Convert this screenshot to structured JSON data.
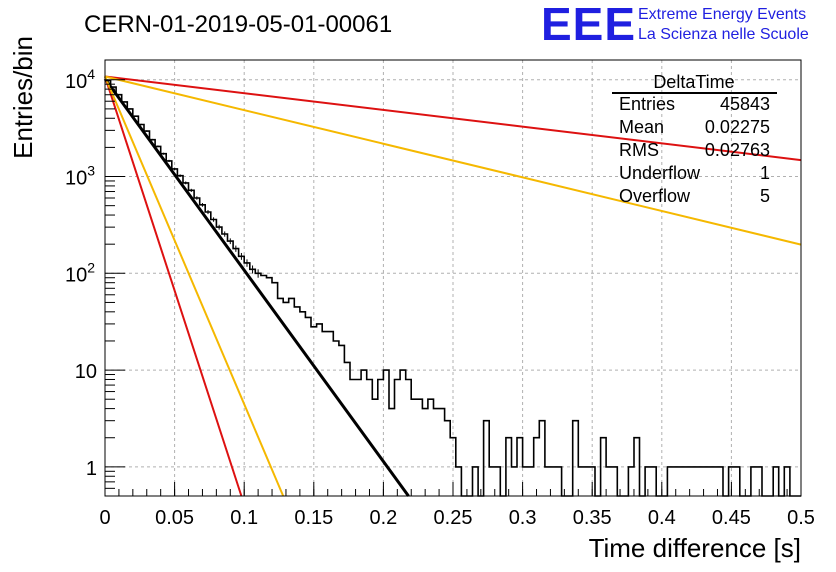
{
  "header": {
    "title": "CERN-01-2019-05-01-00061",
    "logo_text": "EEE",
    "logo_line1": "Extreme Energy Events",
    "logo_line2": "La Scienza nelle Scuole",
    "logo_color": "#1f1fe0"
  },
  "stats": {
    "title": "DeltaTime",
    "rows": [
      {
        "label": "Entries",
        "value": "45843"
      },
      {
        "label": "Mean",
        "value": "0.02275"
      },
      {
        "label": "RMS",
        "value": "0.02763"
      },
      {
        "label": "Underflow",
        "value": "1"
      },
      {
        "label": "Overflow",
        "value": "5"
      }
    ]
  },
  "chart_data": {
    "type": "line",
    "title": "CERN-01-2019-05-01-00061",
    "xlabel": "Time difference [s]",
    "ylabel": "Entries/bin",
    "xlim": [
      0,
      0.5
    ],
    "ylim": [
      0.5,
      16000
    ],
    "yscale": "log",
    "grid": true,
    "x_ticks": [
      {
        "v": 0,
        "label": "0"
      },
      {
        "v": 0.05,
        "label": "0.05"
      },
      {
        "v": 0.1,
        "label": "0.1"
      },
      {
        "v": 0.15,
        "label": "0.15"
      },
      {
        "v": 0.2,
        "label": "0.2"
      },
      {
        "v": 0.25,
        "label": "0.25"
      },
      {
        "v": 0.3,
        "label": "0.3"
      },
      {
        "v": 0.35,
        "label": "0.35"
      },
      {
        "v": 0.4,
        "label": "0.4"
      },
      {
        "v": 0.45,
        "label": "0.45"
      },
      {
        "v": 0.5,
        "label": "0.5"
      }
    ],
    "y_ticks": [
      {
        "v": 1,
        "label": "1"
      },
      {
        "v": 10,
        "label": "10"
      },
      {
        "v": 100,
        "label": "10",
        "exp": "2"
      },
      {
        "v": 1000,
        "label": "10",
        "exp": "3"
      },
      {
        "v": 10000,
        "label": "10",
        "exp": "4"
      }
    ],
    "histogram": {
      "bin_width": 0.004,
      "color": "#000000",
      "values": [
        9800,
        8400,
        7000,
        5900,
        5000,
        4200,
        3450,
        2950,
        2400,
        2050,
        1720,
        1450,
        1200,
        1020,
        860,
        720,
        600,
        510,
        430,
        360,
        300,
        255,
        215,
        180,
        150,
        128,
        110,
        100,
        95,
        90,
        80,
        55,
        50,
        55,
        45,
        40,
        35,
        28,
        30,
        25,
        25,
        20,
        18,
        12,
        8,
        8,
        10,
        8,
        5,
        8,
        10,
        4,
        8,
        10,
        8,
        5,
        5,
        4,
        5,
        4,
        4,
        3,
        2,
        1,
        0.4,
        0.4,
        1,
        0.4,
        3,
        1,
        1,
        0.4,
        2,
        1,
        2,
        1,
        1,
        2,
        3,
        1,
        1,
        1,
        0.4,
        0.4,
        3,
        1,
        1,
        1,
        0.4,
        2,
        1,
        1,
        0.4,
        0.4,
        1,
        2,
        0.4,
        1,
        1,
        0.4,
        0.4,
        1,
        1,
        1,
        1,
        1,
        1,
        1,
        1,
        1,
        1,
        0.4,
        1,
        1,
        0.4,
        0.4,
        1,
        1,
        0.4,
        0.4,
        1,
        0.4,
        1,
        0.4,
        0.4,
        0.4
      ]
    },
    "series": [
      {
        "color": "#000000",
        "points": [
          [
            0,
            10200
          ],
          [
            0.218,
            0.45
          ]
        ]
      },
      {
        "color": "#dd1111",
        "points": [
          [
            0,
            10800
          ],
          [
            0.098,
            0.45
          ]
        ]
      },
      {
        "color": "#dd1111",
        "points": [
          [
            0,
            10800
          ],
          [
            0.5,
            1480
          ]
        ]
      },
      {
        "color": "#f5b800",
        "points": [
          [
            0,
            10800
          ],
          [
            0.128,
            0.45
          ]
        ]
      },
      {
        "color": "#f5b800",
        "points": [
          [
            0,
            10800
          ],
          [
            0.5,
            198
          ]
        ]
      }
    ]
  }
}
